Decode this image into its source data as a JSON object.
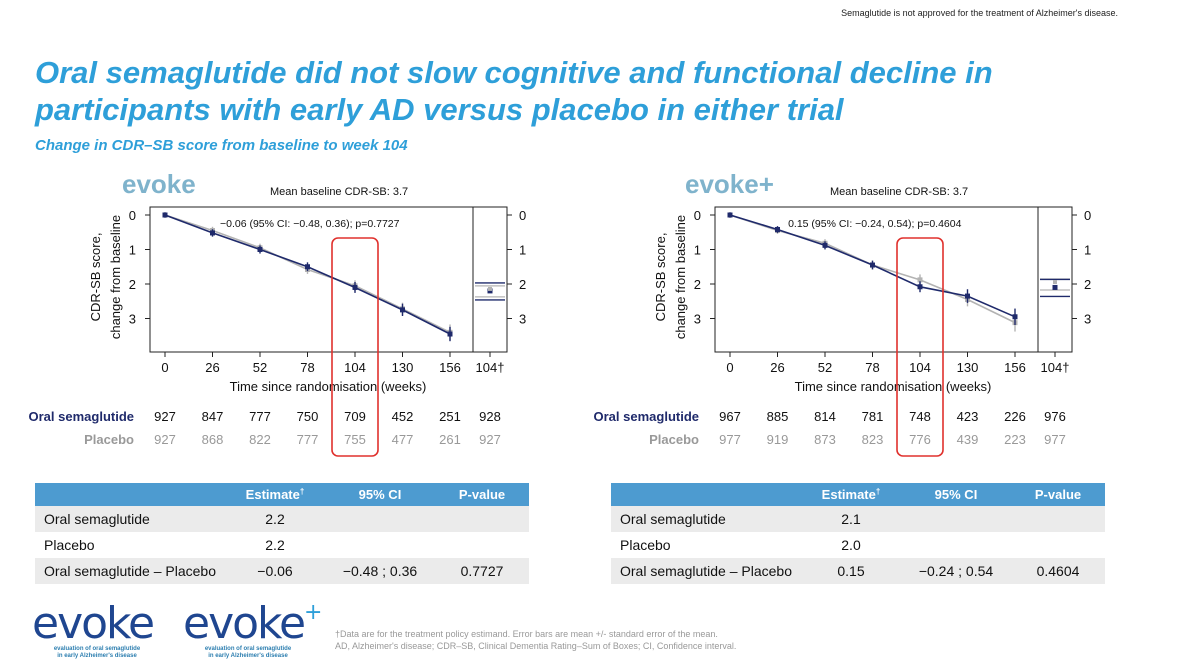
{
  "disclaimer": "Semaglutide is not approved for the treatment of Alzheimer's disease.",
  "title": "Oral semaglutide did not slow cognitive and functional decline in participants with early AD versus placebo in either trial",
  "subtitle": "Change in CDR–SB score from baseline to week 104",
  "colors": {
    "accent": "#2e9fd9",
    "semaglutide": "#1f2a6b",
    "placebo": "#b3b3b3",
    "highlight": "#e0312d",
    "table_header": "#4d9bd0"
  },
  "chart_data": [
    {
      "type": "line",
      "trial": "evoke",
      "baseline_label": "Mean baseline CDR-SB: 3.7",
      "annotation": "−0.06 (95% CI: −0.48, 0.36); p=0.7727",
      "ylabel_line1": "CDR-SB score,",
      "ylabel_line2": "change from baseline",
      "xlabel": "Time since randomisation (weeks)",
      "x": [
        0,
        26,
        52,
        78,
        104,
        130,
        156
      ],
      "x_tick_labels": [
        "0",
        "26",
        "52",
        "78",
        "104",
        "130",
        "156",
        "104†"
      ],
      "y_tick_labels": [
        "0",
        "1",
        "2",
        "3"
      ],
      "ylim": [
        0,
        3.6
      ],
      "series": [
        {
          "name": "Oral semaglutide",
          "values": [
            0.0,
            0.52,
            1.0,
            1.5,
            2.1,
            2.75,
            3.45
          ],
          "errors": [
            0.02,
            0.05,
            0.06,
            0.07,
            0.1,
            0.12,
            0.15
          ]
        },
        {
          "name": "Placebo",
          "values": [
            0.0,
            0.45,
            0.95,
            1.58,
            2.05,
            2.72,
            3.4
          ],
          "errors": [
            0.02,
            0.05,
            0.06,
            0.07,
            0.1,
            0.12,
            0.17
          ]
        }
      ],
      "week104_estimates": {
        "semaglutide": 2.2,
        "placebo": 2.2
      },
      "at_risk": {
        "Oral semaglutide": [
          "927",
          "847",
          "777",
          "750",
          "709",
          "452",
          "251",
          "928"
        ],
        "Placebo": [
          "927",
          "868",
          "822",
          "777",
          "755",
          "477",
          "261",
          "927"
        ]
      }
    },
    {
      "type": "line",
      "trial": "evoke+",
      "baseline_label": "Mean baseline CDR-SB: 3.7",
      "annotation": "0.15 (95% CI: −0.24, 0.54); p=0.4604",
      "ylabel_line1": "CDR-SB score,",
      "ylabel_line2": "change from baseline",
      "xlabel": "Time since randomisation (weeks)",
      "x": [
        0,
        26,
        52,
        78,
        104,
        130,
        156
      ],
      "x_tick_labels": [
        "0",
        "26",
        "52",
        "78",
        "104",
        "130",
        "156",
        "104†"
      ],
      "y_tick_labels": [
        "0",
        "1",
        "2",
        "3"
      ],
      "ylim": [
        0,
        3.6
      ],
      "series": [
        {
          "name": "Oral semaglutide",
          "values": [
            0.0,
            0.42,
            0.88,
            1.45,
            2.08,
            2.35,
            2.95
          ],
          "errors": [
            0.02,
            0.04,
            0.06,
            0.07,
            0.1,
            0.14,
            0.18
          ]
        },
        {
          "name": "Placebo",
          "values": [
            0.0,
            0.45,
            0.82,
            1.45,
            1.88,
            2.45,
            3.12
          ],
          "errors": [
            0.02,
            0.04,
            0.06,
            0.07,
            0.1,
            0.14,
            0.2
          ]
        }
      ],
      "week104_estimates": {
        "semaglutide": 2.1,
        "placebo": 2.0
      },
      "at_risk": {
        "Oral semaglutide": [
          "967",
          "885",
          "814",
          "781",
          "748",
          "423",
          "226",
          "976"
        ],
        "Placebo": [
          "977",
          "919",
          "873",
          "823",
          "776",
          "439",
          "223",
          "977"
        ]
      }
    }
  ],
  "tables": [
    {
      "headers": [
        "",
        "Estimate",
        "95% CI",
        "P-value"
      ],
      "dagger": "†",
      "rows": [
        [
          "Oral semaglutide",
          "2.2",
          "",
          ""
        ],
        [
          "Placebo",
          "2.2",
          "",
          ""
        ],
        [
          "Oral semaglutide – Placebo",
          "−0.06",
          "−0.48 ; 0.36",
          "0.7727"
        ]
      ]
    },
    {
      "headers": [
        "",
        "Estimate",
        "95% CI",
        "P-value"
      ],
      "dagger": "†",
      "rows": [
        [
          "Oral semaglutide",
          "2.1",
          "",
          ""
        ],
        [
          "Placebo",
          "2.0",
          "",
          ""
        ],
        [
          "Oral semaglutide – Placebo",
          "0.15",
          "−0.24 ; 0.54",
          "0.4604"
        ]
      ]
    }
  ],
  "footnote_line1": "†Data are for the treatment policy estimand. Error bars are mean +/- standard error of the mean.",
  "footnote_line2": "AD, Alzheimer's disease; CDR–SB, Clinical Dementia Rating–Sum of Boxes; CI, Confidence interval.",
  "logos": [
    {
      "word": "evoke",
      "plus": "",
      "tag1": "evaluation of oral semaglutide",
      "tag2": "in early Alzheimer's disease"
    },
    {
      "word": "evoke",
      "plus": "+",
      "tag1": "evaluation of oral semaglutide",
      "tag2": "in early Alzheimer's disease"
    }
  ]
}
